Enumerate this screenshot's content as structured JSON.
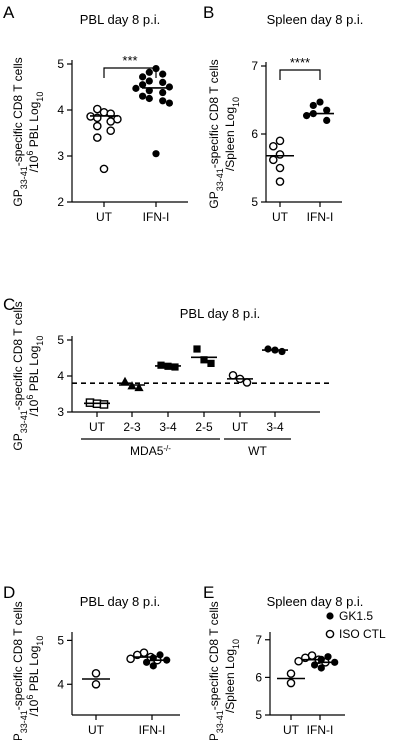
{
  "chart_data": [
    {
      "panel": "A",
      "type": "scatter",
      "title": "PBL day 8 p.i.",
      "ylabel_main": "GP",
      "ylabel_sub": "33-41",
      "ylabel_rest": "-specific CD8 T cells",
      "ylabel_line2": "/10",
      "ylabel_line2_sup": "6",
      "ylabel_line2_rest": " PBL Log",
      "ylabel_line2_sub": "10",
      "ylim": [
        2,
        5
      ],
      "yticks": [
        "2",
        "3",
        "4",
        "5"
      ],
      "categories": [
        "UT",
        "IFN-I"
      ],
      "significance": "***",
      "series": [
        {
          "category": "UT",
          "style": "open",
          "mean": 3.87,
          "values": [
            3.95,
            4.02,
            3.92,
            3.86,
            3.83,
            3.8,
            3.75,
            3.65,
            3.55,
            3.4,
            2.72
          ]
        },
        {
          "category": "IFN-I",
          "style": "filled",
          "mean": 4.48,
          "values": [
            4.9,
            4.82,
            4.78,
            4.72,
            4.63,
            4.6,
            4.55,
            4.5,
            4.47,
            4.42,
            4.38,
            4.3,
            4.25,
            4.2,
            4.15,
            3.05
          ]
        }
      ]
    },
    {
      "panel": "B",
      "type": "scatter",
      "title": "Spleen day 8 p.i.",
      "ylabel_main": "GP",
      "ylabel_sub": "33-41",
      "ylabel_rest": "-specific CD8 T cells",
      "ylabel_line2": "/Spleen Log",
      "ylabel_line2_sub": "10",
      "ylim": [
        5,
        7
      ],
      "yticks": [
        "5",
        "6",
        "7"
      ],
      "categories": [
        "UT",
        "IFN-I"
      ],
      "significance": "****",
      "series": [
        {
          "category": "UT",
          "style": "open",
          "mean": 5.68,
          "values": [
            5.9,
            5.82,
            5.7,
            5.62,
            5.5,
            5.3
          ]
        },
        {
          "category": "IFN-I",
          "style": "filled",
          "mean": 6.3,
          "values": [
            6.47,
            6.42,
            6.35,
            6.3,
            6.27,
            6.2
          ]
        }
      ]
    },
    {
      "panel": "C",
      "type": "scatter",
      "title": "PBL day 8 p.i.",
      "ylabel_main": "GP",
      "ylabel_sub": "33-41",
      "ylabel_rest": "-specific CD8 T cells",
      "ylabel_line2": "/10",
      "ylabel_line2_sup": "6",
      "ylabel_line2_rest": " PBL Log",
      "ylabel_line2_sub": "10",
      "ylim": [
        3,
        5
      ],
      "yticks": [
        "3",
        "4",
        "5"
      ],
      "categories": [
        "UT",
        "2-3",
        "3-4",
        "2-5",
        "UT",
        "3-4"
      ],
      "groups": [
        {
          "label": "MDA5",
          "sup": "-/-",
          "from": 0,
          "to": 3
        },
        {
          "label": "WT",
          "from": 4,
          "to": 5
        }
      ],
      "dashed_line_y": 3.8,
      "series": [
        {
          "category": "UT",
          "marker": "open-square",
          "mean": 3.24,
          "values": [
            3.26,
            3.23,
            3.21
          ]
        },
        {
          "category": "2-3",
          "marker": "filled-triangle",
          "mean": 3.75,
          "values": [
            3.85,
            3.73,
            3.68
          ]
        },
        {
          "category": "3-4",
          "marker": "filled-square",
          "mean": 4.28,
          "values": [
            4.3,
            4.27,
            4.25
          ]
        },
        {
          "category": "2-5",
          "marker": "filled-square",
          "mean": 4.52,
          "values": [
            4.75,
            4.45,
            4.35
          ]
        },
        {
          "category": "UT",
          "marker": "open-circle",
          "mean": 3.92,
          "values": [
            4.02,
            3.92,
            3.82
          ]
        },
        {
          "category": "3-4",
          "marker": "filled-circle",
          "mean": 4.72,
          "values": [
            4.75,
            4.72,
            4.68
          ]
        }
      ]
    },
    {
      "panel": "D",
      "type": "scatter",
      "title": "PBL day 8 p.i.",
      "ylabel_main": "GP",
      "ylabel_sub": "33-41",
      "ylabel_rest": "-specific CD8 T cells",
      "ylabel_line2": "/10",
      "ylabel_line2_sup": "6",
      "ylabel_line2_rest": " PBL Log",
      "ylabel_line2_sub": "10",
      "ylim": [
        3.3,
        5.1
      ],
      "yticks": [
        "4",
        "5"
      ],
      "ytick_values": [
        4,
        5
      ],
      "categories": [
        "UT",
        "IFN-I"
      ],
      "series": [
        {
          "category": "UT",
          "style": "open",
          "mean": 4.12,
          "values": [
            4.25,
            4.0
          ]
        },
        {
          "category": "IFN-I",
          "group": "ISO CTL",
          "style": "open",
          "mean": 4.62,
          "values": [
            4.72,
            4.67,
            4.62,
            4.58,
            4.55
          ]
        },
        {
          "category": "IFN-I",
          "group": "GK1.5",
          "style": "filled",
          "mean": 4.55,
          "values": [
            4.67,
            4.6,
            4.55,
            4.5,
            4.42
          ]
        }
      ]
    },
    {
      "panel": "E",
      "type": "scatter",
      "title": "Spleen day 8 p.i.",
      "ylabel_main": "GP",
      "ylabel_sub": "33-41",
      "ylabel_rest": "-specific CD8 T cells",
      "ylabel_line2": "/Spleen Log",
      "ylabel_line2_sub": "10",
      "ylim": [
        5,
        7.1
      ],
      "yticks": [
        "5",
        "6",
        "7"
      ],
      "ytick_values": [
        5,
        6,
        7
      ],
      "categories": [
        "UT",
        "IFN-I"
      ],
      "legend": [
        {
          "label": "GK1.5",
          "style": "filled"
        },
        {
          "label": "ISO CTL",
          "style": "open"
        }
      ],
      "series": [
        {
          "category": "UT",
          "style": "open",
          "mean": 5.97,
          "values": [
            6.1,
            5.85
          ]
        },
        {
          "category": "IFN-I",
          "group": "ISO CTL",
          "style": "open",
          "mean": 6.47,
          "values": [
            6.58,
            6.52,
            6.47,
            6.43,
            6.4
          ]
        },
        {
          "category": "IFN-I",
          "group": "GK1.5",
          "style": "filled",
          "mean": 6.4,
          "values": [
            6.55,
            6.48,
            6.4,
            6.33,
            6.25
          ]
        }
      ]
    }
  ]
}
